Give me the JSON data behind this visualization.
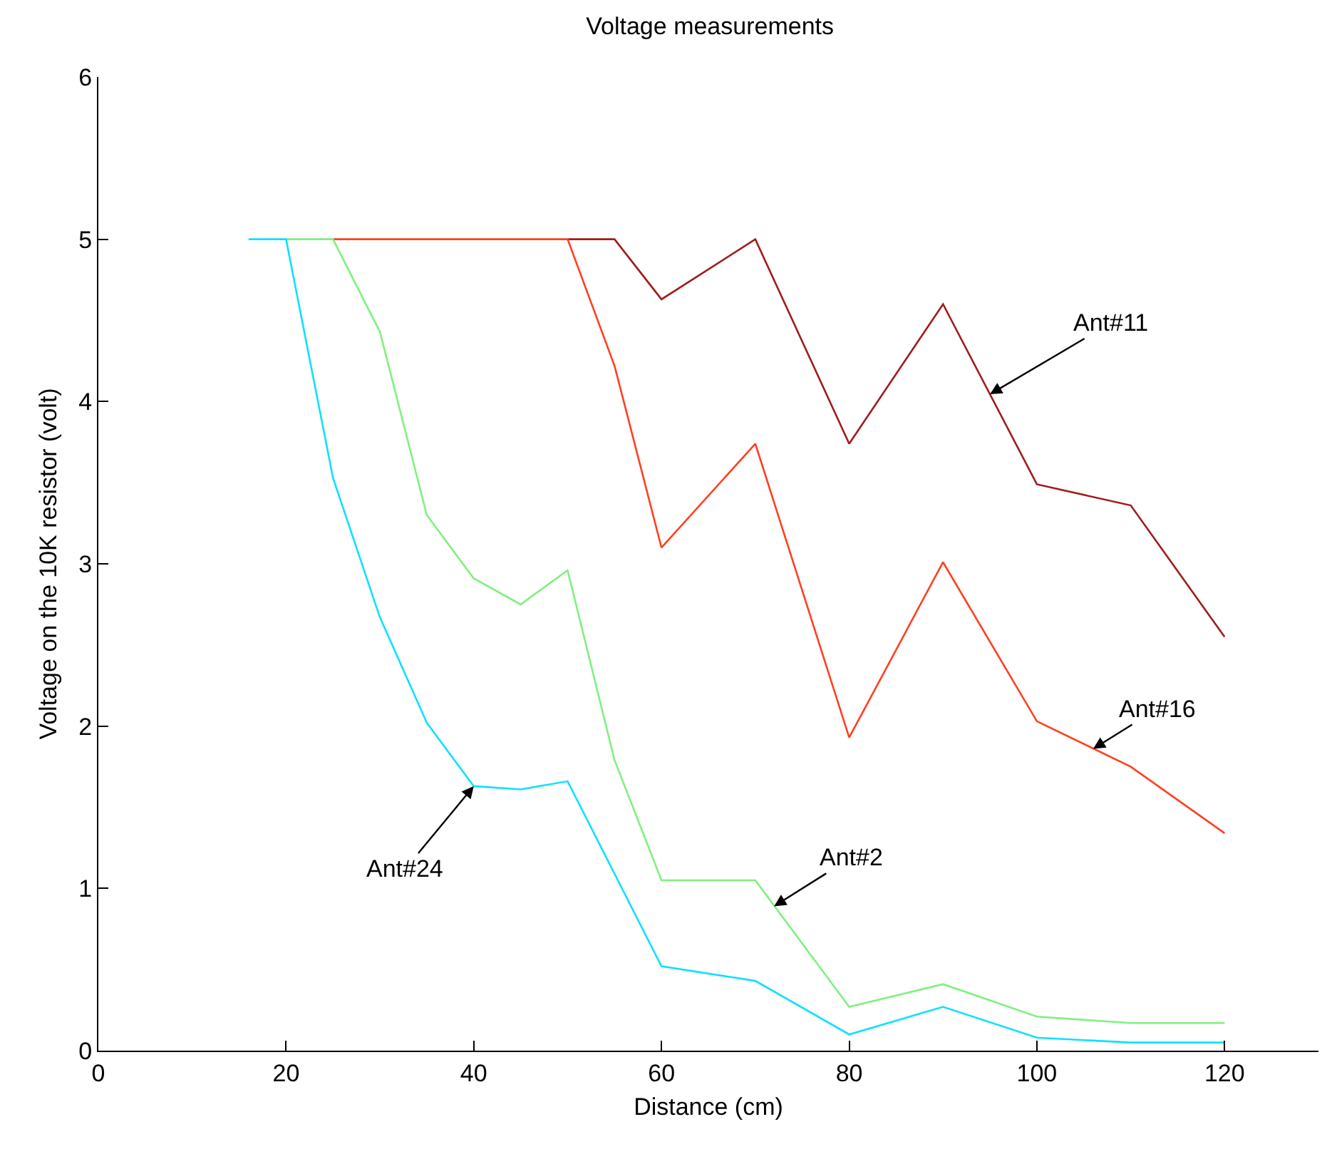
{
  "chart_data": {
    "type": "line",
    "title": "Voltage measurements",
    "xlabel": "Distance (cm)",
    "ylabel": "Voltage on the 10K resistor (volt)",
    "xlim": [
      0,
      130
    ],
    "xticks": [
      0,
      20,
      40,
      60,
      80,
      100,
      120
    ],
    "ylim": [
      0,
      6
    ],
    "yticks": [
      0,
      1,
      2,
      3,
      4,
      5,
      6
    ],
    "grid": false,
    "marker": "none",
    "line_style": "solid",
    "series": [
      {
        "color": "#a01c1c",
        "x": [
          50,
          55,
          60,
          70,
          80,
          90,
          100,
          110,
          120
        ],
        "values": [
          5,
          5,
          4.63,
          5,
          3.74,
          4.6,
          3.49,
          3.36,
          2.55
        ]
      },
      {
        "color": "#ff4020",
        "x": [
          25,
          30,
          35,
          40,
          45,
          50,
          55,
          60,
          70,
          80,
          90,
          100,
          110,
          120
        ],
        "values": [
          5,
          5,
          5,
          5,
          5,
          5,
          4.22,
          3.1,
          3.74,
          1.93,
          3.01,
          2.03,
          1.75,
          1.34
        ]
      },
      {
        "color": "#80f080",
        "x": [
          20,
          25,
          30,
          35,
          40,
          45,
          50,
          55,
          60,
          70,
          80,
          90,
          100,
          110,
          120
        ],
        "values": [
          5,
          5,
          4.43,
          3.3,
          2.91,
          2.75,
          2.96,
          1.79,
          1.05,
          1.05,
          0.27,
          0.41,
          0.21,
          0.17,
          0.17
        ]
      },
      {
        "color": "#10e0ff",
        "x": [
          16,
          20,
          25,
          30,
          35,
          40,
          45,
          50,
          60,
          70,
          80,
          90,
          100,
          110,
          120
        ],
        "values": [
          5,
          5,
          3.53,
          2.67,
          2.02,
          1.63,
          1.61,
          1.66,
          0.52,
          0.43,
          0.1,
          0.27,
          0.08,
          0.05,
          0.05
        ]
      }
    ],
    "annotations": [
      {
        "text": "Ant#11",
        "x": 95,
        "y": 4.045
      },
      {
        "text": "Ant#16",
        "x": 106,
        "y": 1.86
      },
      {
        "text": "Ant#2",
        "x": 72,
        "y": 0.89
      },
      {
        "text": "Ant#24",
        "x": 40,
        "y": 1.63
      }
    ]
  }
}
